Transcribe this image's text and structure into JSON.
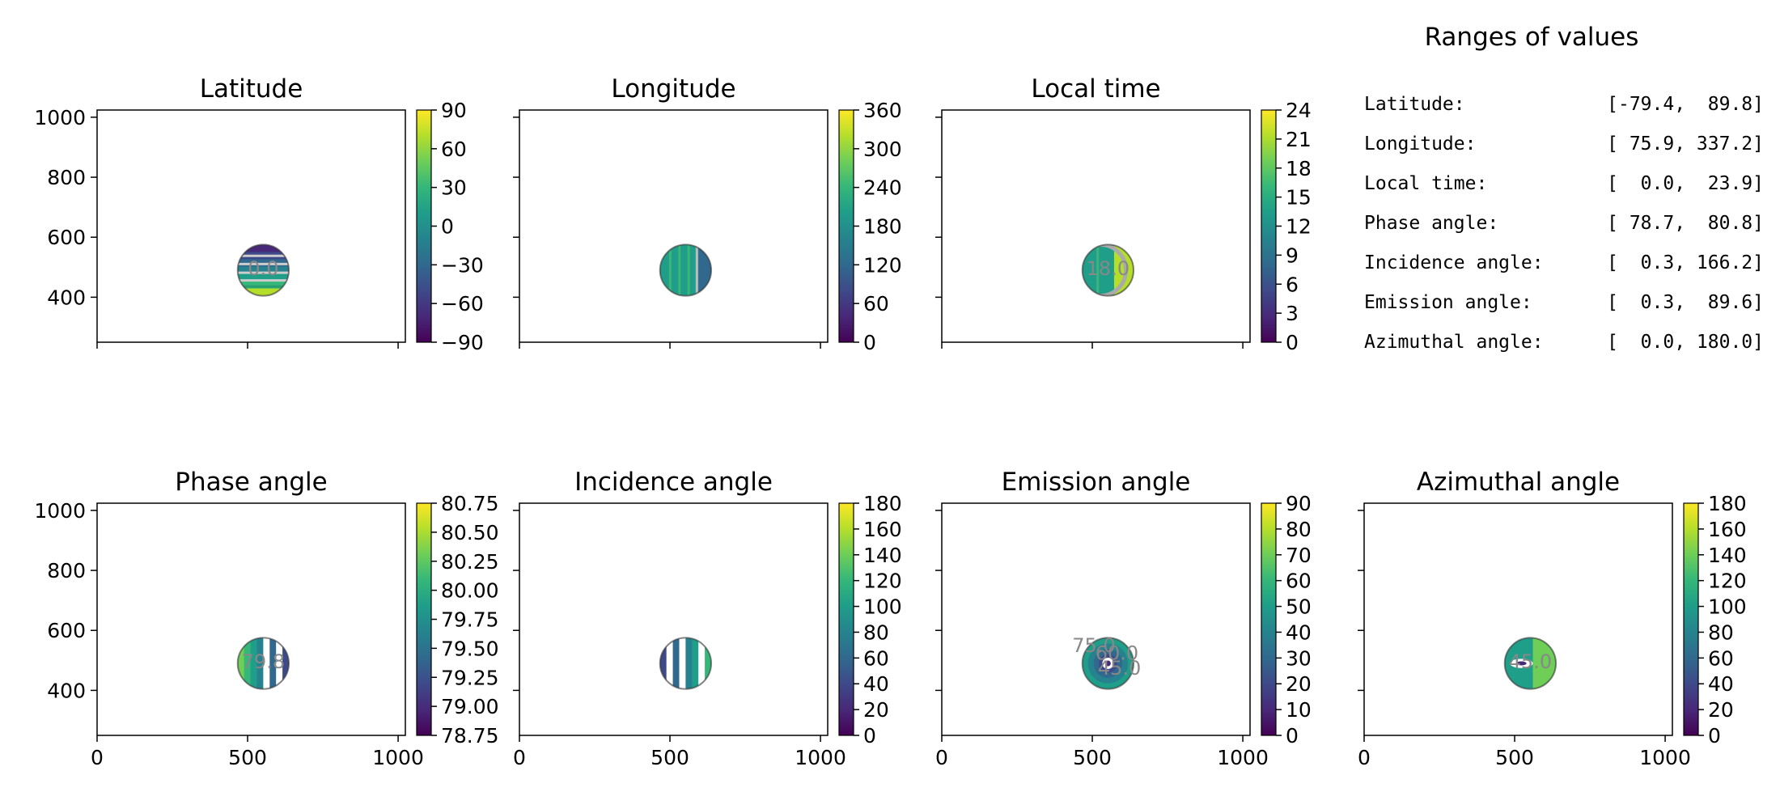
{
  "colors": {
    "viridis": [
      "#440154",
      "#482878",
      "#3e4989",
      "#31688e",
      "#26828e",
      "#1f9e89",
      "#35b779",
      "#6ece58",
      "#b5de2b",
      "#fde725"
    ]
  },
  "ranges_panel": {
    "title": "Ranges of values",
    "rows": [
      {
        "label": "Latitude:",
        "value": "[-79.4,  89.8]"
      },
      {
        "label": "Longitude:",
        "value": "[ 75.9, 337.2]"
      },
      {
        "label": "Local time:",
        "value": "[  0.0,  23.9]"
      },
      {
        "label": "Phase angle:",
        "value": "[ 78.7,  80.8]"
      },
      {
        "label": "Incidence angle:",
        "value": "[  0.3, 166.2]"
      },
      {
        "label": "Emission angle:",
        "value": "[  0.3,  89.6]"
      },
      {
        "label": "Azimuthal angle:",
        "value": "[  0.0, 180.0]"
      }
    ]
  },
  "chart_data": [
    {
      "type": "heatmap",
      "title": "Latitude",
      "xlim": [
        0,
        1024
      ],
      "ylim": [
        250,
        1024
      ],
      "xticks": [
        0,
        500,
        1000
      ],
      "yticks": [
        "1000",
        "800",
        "600",
        "400"
      ],
      "show_xtick_labels": false,
      "show_ytick_labels": true,
      "disc": {
        "x": 552,
        "y": 490,
        "r": 85
      },
      "pattern": "horizontal",
      "colorbar": {
        "min": -90,
        "max": 90,
        "ticks": [
          "90",
          "60",
          "30",
          "0",
          "−30",
          "−60",
          "−90"
        ]
      },
      "contour_labels": [
        "0.0"
      ]
    },
    {
      "type": "heatmap",
      "title": "Longitude",
      "xlim": [
        0,
        1024
      ],
      "ylim": [
        250,
        1024
      ],
      "xticks": [
        0,
        500,
        1000
      ],
      "yticks": [
        "1000",
        "800",
        "600",
        "400"
      ],
      "show_xtick_labels": false,
      "show_ytick_labels": false,
      "disc": {
        "x": 552,
        "y": 490,
        "r": 85
      },
      "pattern": "vertical",
      "colorbar": {
        "min": 0,
        "max": 360,
        "ticks": [
          "360",
          "300",
          "240",
          "180",
          "120",
          "60",
          "0"
        ]
      },
      "contour_labels": []
    },
    {
      "type": "heatmap",
      "title": "Local time",
      "xlim": [
        0,
        1024
      ],
      "ylim": [
        250,
        1024
      ],
      "xticks": [
        0,
        500,
        1000
      ],
      "yticks": [
        "1000",
        "800",
        "600",
        "400"
      ],
      "show_xtick_labels": false,
      "show_ytick_labels": false,
      "disc": {
        "x": 552,
        "y": 490,
        "r": 85
      },
      "pattern": "split",
      "colorbar": {
        "min": 0,
        "max": 24,
        "ticks": [
          "24",
          "21",
          "18",
          "15",
          "12",
          "9",
          "6",
          "3",
          "0"
        ]
      },
      "contour_labels": [
        "18.0"
      ]
    },
    {
      "type": "heatmap",
      "title": "Phase angle",
      "xlim": [
        0,
        1024
      ],
      "ylim": [
        250,
        1024
      ],
      "xticks": [
        0,
        500,
        1000
      ],
      "yticks": [
        "1000",
        "800",
        "600",
        "400"
      ],
      "show_xtick_labels": true,
      "show_ytick_labels": true,
      "disc": {
        "x": 552,
        "y": 490,
        "r": 85
      },
      "pattern": "vstripes",
      "colorbar": {
        "min": 78.75,
        "max": 80.75,
        "ticks": [
          "80.75",
          "80.50",
          "80.25",
          "80.00",
          "79.75",
          "79.50",
          "79.25",
          "79.00",
          "78.75"
        ]
      },
      "contour_labels": [
        "79.8"
      ]
    },
    {
      "type": "heatmap",
      "title": "Incidence angle",
      "xlim": [
        0,
        1024
      ],
      "ylim": [
        250,
        1024
      ],
      "xticks": [
        0,
        500,
        1000
      ],
      "yticks": [
        "1000",
        "800",
        "600",
        "400"
      ],
      "show_xtick_labels": true,
      "show_ytick_labels": false,
      "disc": {
        "x": 552,
        "y": 490,
        "r": 85
      },
      "pattern": "vstripes2",
      "colorbar": {
        "min": 0,
        "max": 180,
        "ticks": [
          "180",
          "160",
          "140",
          "120",
          "100",
          "80",
          "60",
          "40",
          "20",
          "0"
        ]
      },
      "contour_labels": []
    },
    {
      "type": "heatmap",
      "title": "Emission angle",
      "xlim": [
        0,
        1024
      ],
      "ylim": [
        250,
        1024
      ],
      "xticks": [
        0,
        500,
        1000
      ],
      "yticks": [
        "1000",
        "800",
        "600",
        "400"
      ],
      "show_xtick_labels": true,
      "show_ytick_labels": false,
      "disc": {
        "x": 552,
        "y": 490,
        "r": 85
      },
      "pattern": "radial",
      "colorbar": {
        "min": 0,
        "max": 90,
        "ticks": [
          "90",
          "80",
          "70",
          "60",
          "50",
          "40",
          "30",
          "20",
          "10",
          "0"
        ]
      },
      "contour_labels": [
        "75.0",
        "60.0",
        "45.0"
      ]
    },
    {
      "type": "heatmap",
      "title": "Azimuthal angle",
      "xlim": [
        0,
        1024
      ],
      "ylim": [
        250,
        1024
      ],
      "xticks": [
        0,
        500,
        1000
      ],
      "yticks": [
        "1000",
        "800",
        "600",
        "400"
      ],
      "show_xtick_labels": true,
      "show_ytick_labels": false,
      "disc": {
        "x": 552,
        "y": 490,
        "r": 85
      },
      "pattern": "azimuth",
      "colorbar": {
        "min": 0,
        "max": 180,
        "ticks": [
          "180",
          "160",
          "140",
          "120",
          "100",
          "80",
          "60",
          "40",
          "20",
          "0"
        ]
      },
      "contour_labels": [
        "45.0"
      ]
    }
  ]
}
